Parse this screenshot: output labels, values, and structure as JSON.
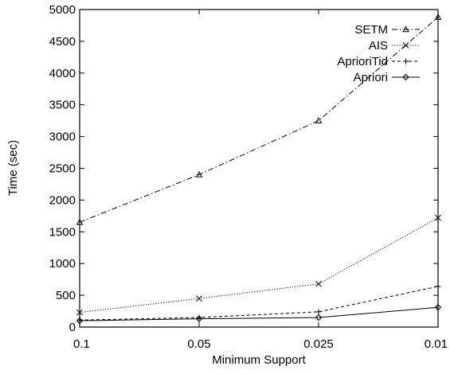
{
  "chart_data": {
    "type": "line",
    "xlabel": "Minimum Support",
    "ylabel": "Time (sec)",
    "categories": [
      "0.1",
      "0.05",
      "0.025",
      "0.01"
    ],
    "ylim": [
      0,
      5000
    ],
    "yticks": [
      "0",
      "500",
      "1000",
      "1500",
      "2000",
      "2500",
      "3000",
      "3500",
      "4000",
      "4500",
      "5000"
    ],
    "grid": false,
    "legend_position": "top-right",
    "series": [
      {
        "name": "SETM",
        "values": [
          1650,
          2400,
          3250,
          4880
        ],
        "dash": "dash-dot",
        "marker": "triangle"
      },
      {
        "name": "AIS",
        "values": [
          230,
          450,
          680,
          1720
        ],
        "dash": "dotted",
        "marker": "x"
      },
      {
        "name": "AprioriTid",
        "values": [
          110,
          150,
          240,
          640
        ],
        "dash": "dashed",
        "marker": "plus"
      },
      {
        "name": "Apriori",
        "values": [
          100,
          130,
          150,
          310
        ],
        "dash": "solid",
        "marker": "diamond"
      }
    ]
  }
}
